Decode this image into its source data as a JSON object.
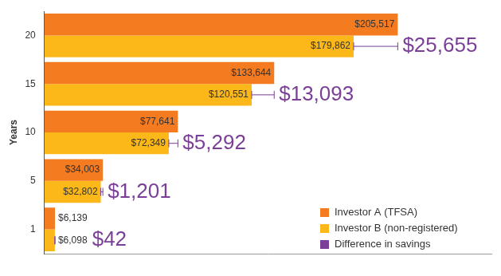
{
  "chart_data": {
    "type": "bar",
    "orientation": "horizontal",
    "y_label": "Years",
    "categories": [
      "20",
      "15",
      "10",
      "5",
      "1"
    ],
    "series": [
      {
        "name": "Investor A (TFSA)",
        "color": "#f47b20",
        "values": [
          205517,
          133644,
          77641,
          34003,
          6139
        ],
        "value_labels": [
          "$205,517",
          "$133,644",
          "$77,641",
          "$34,003",
          "$6,139"
        ]
      },
      {
        "name": "Investor B (non-registered)",
        "color": "#fbb818",
        "values": [
          179862,
          120551,
          72349,
          32802,
          6098
        ],
        "value_labels": [
          "$179,862",
          "$120,551",
          "$72,349",
          "$32,802",
          "$6,098"
        ]
      },
      {
        "name": "Difference in savings",
        "color": "#7b3f98",
        "type": "annotation",
        "values": [
          25655,
          13093,
          5292,
          1201,
          42
        ],
        "value_labels": [
          "$25,655",
          "$13,093",
          "$5,292",
          "$1,201",
          "$42"
        ]
      }
    ],
    "xlim": [
      0,
      260000
    ],
    "tick_labels": "y",
    "grid": false,
    "data_labels": true,
    "legend": "lower right"
  }
}
